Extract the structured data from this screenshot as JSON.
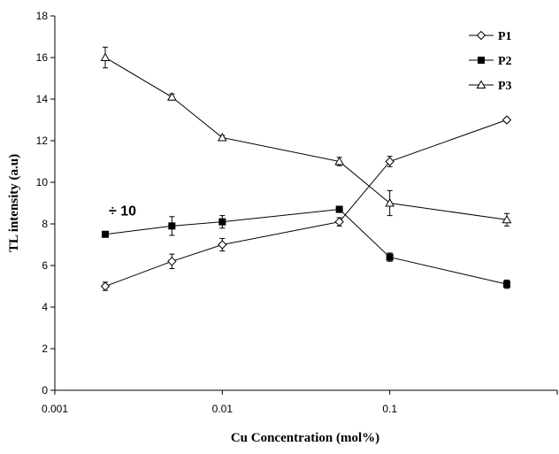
{
  "chart_data": {
    "type": "line",
    "title": "",
    "xlabel": "Cu Concentration (mol%)",
    "ylabel": "TL intensity (a.u)",
    "x_scale": "log",
    "xlim": [
      0.001,
      1
    ],
    "ylim": [
      0,
      18
    ],
    "x_ticks": [
      0.001,
      0.01,
      0.1,
      1
    ],
    "x_tick_labels": [
      "0.001",
      "0.01",
      "0.1",
      ""
    ],
    "y_ticks": [
      0,
      2,
      4,
      6,
      8,
      10,
      12,
      14,
      16,
      18
    ],
    "y_tick_labels": [
      "0",
      "2",
      "4",
      "6",
      "8",
      "10",
      "12",
      "14",
      "16",
      "18"
    ],
    "grid": false,
    "legend_position": "top-right",
    "annotations": [
      {
        "text": "÷ 10",
        "x": 0.0021,
        "y": 8.4
      }
    ],
    "series": [
      {
        "name": "P1",
        "marker": "diamond-open",
        "x": [
          0.002,
          0.005,
          0.01,
          0.05,
          0.1,
          0.5
        ],
        "y": [
          5.0,
          6.2,
          7.0,
          8.1,
          11.0,
          13.0
        ],
        "err": [
          0.2,
          0.35,
          0.3,
          0.2,
          0.25,
          0.1
        ]
      },
      {
        "name": "P2",
        "marker": "square-filled",
        "x": [
          0.002,
          0.005,
          0.01,
          0.05,
          0.1,
          0.5
        ],
        "y": [
          7.5,
          7.9,
          8.1,
          8.7,
          6.4,
          5.1
        ],
        "err": [
          0.1,
          0.45,
          0.3,
          0.15,
          0.2,
          0.2
        ]
      },
      {
        "name": "P3",
        "marker": "triangle-open",
        "x": [
          0.002,
          0.005,
          0.01,
          0.05,
          0.1,
          0.5
        ],
        "y": [
          16.0,
          14.1,
          12.15,
          11.0,
          9.0,
          8.2
        ],
        "err": [
          0.5,
          0.15,
          0.1,
          0.2,
          0.6,
          0.3
        ]
      }
    ]
  }
}
